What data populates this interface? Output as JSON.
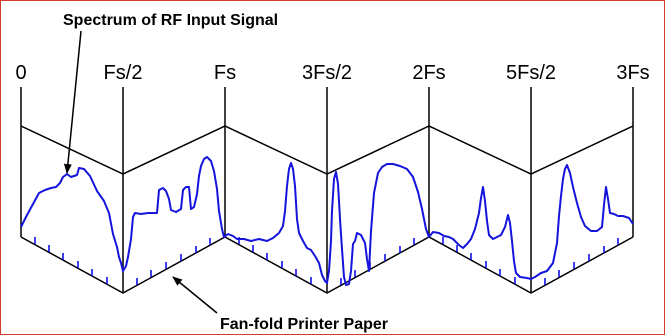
{
  "colors": {
    "frame_border": "#d23a2b",
    "paper_outline": "#000000",
    "signal": "#1414dc",
    "tick_marks": "#0000ee"
  },
  "annotations": {
    "top": "Spectrum of RF Input Signal",
    "bottom": "Fan-fold Printer Paper"
  },
  "frequency_labels": [
    "0",
    "Fs/2",
    "Fs",
    "3Fs/2",
    "2Fs",
    "5Fs/2",
    "3Fs"
  ]
}
